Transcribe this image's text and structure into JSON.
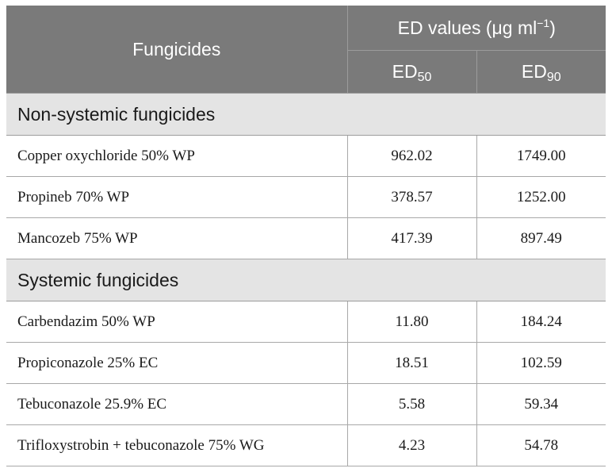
{
  "table": {
    "header": {
      "col_fungicides": "Fungicides",
      "col_ed_values": "ED values (μg ml",
      "col_ed_values_sup": "−1",
      "col_ed_values_close": ")",
      "col_ed50_base": "ED",
      "col_ed50_sub": "50",
      "col_ed90_base": "ED",
      "col_ed90_sub": "90"
    },
    "sections": [
      {
        "title": "Non-systemic fungicides",
        "rows": [
          {
            "name": "Copper oxychloride 50% WP",
            "ed50": "962.02",
            "ed90": "1749.00"
          },
          {
            "name": "Propineb 70% WP",
            "ed50": "378.57",
            "ed90": "1252.00"
          },
          {
            "name": "Mancozeb 75% WP",
            "ed50": "417.39",
            "ed90": "897.49"
          }
        ]
      },
      {
        "title": "Systemic fungicides",
        "rows": [
          {
            "name": "Carbendazim 50% WP",
            "ed50": "11.80",
            "ed90": "184.24"
          },
          {
            "name": "Propiconazole 25% EC",
            "ed50": "18.51",
            "ed90": "102.59"
          },
          {
            "name": "Tebuconazole 25.9% EC",
            "ed50": "5.58",
            "ed90": "59.34"
          },
          {
            "name": "Trifloxystrobin + tebuconazole 75% WG",
            "ed50": "4.23",
            "ed90": "54.78"
          }
        ]
      }
    ]
  }
}
